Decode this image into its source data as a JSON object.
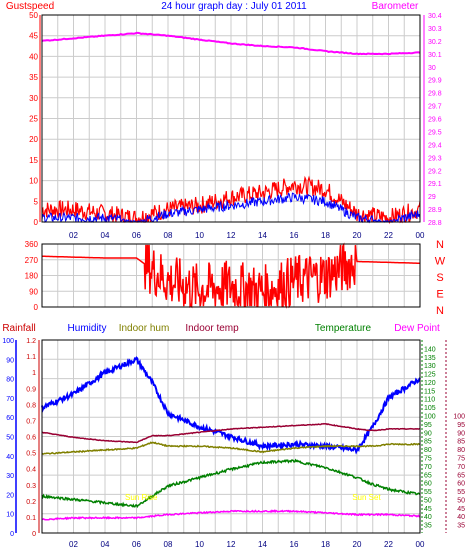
{
  "title": "24 hour graph day : July 01 2011",
  "colors": {
    "gust": "#ff0000",
    "wind": "#0000ff",
    "baro": "#ff00ff",
    "dir": "#ff0000",
    "rain": "#cc0000",
    "humidity": "#0000ff",
    "indoor_hum": "#808000",
    "indoor_temp": "#990033",
    "temperature": "#008000",
    "dewpoint": "#ff00ff",
    "grid": "#cccccc",
    "frame": "#000000",
    "time_axis": "#000080",
    "sun": "#ffff00"
  },
  "time_ticks": [
    "02",
    "04",
    "06",
    "08",
    "10",
    "12",
    "14",
    "16",
    "18",
    "20",
    "22",
    "00"
  ],
  "chart_data": [
    {
      "type": "line",
      "title": "24 hour graph day : July 01 2011",
      "legend": [
        {
          "name": "Gustspeed",
          "color": "#ff0000"
        },
        {
          "name": "Barometer",
          "color": "#ff00ff"
        }
      ],
      "ylim_left": [
        0,
        50
      ],
      "ylim_right": [
        28.8,
        30.4
      ],
      "yticks_left": [
        "0",
        "5",
        "10",
        "15",
        "20",
        "25",
        "30",
        "35",
        "40",
        "45",
        "50"
      ],
      "yticks_right": [
        "28.8",
        "28.9",
        "29",
        "29.1",
        "29.2",
        "29.3",
        "29.4",
        "29.5",
        "29.6",
        "29.7",
        "29.8",
        "29.9",
        "30",
        "30.1",
        "30.2",
        "30.3",
        "30.4"
      ],
      "x_hours": [
        0,
        2,
        4,
        6,
        8,
        10,
        12,
        14,
        16,
        18,
        20,
        22,
        24
      ],
      "series": [
        {
          "name": "Gustspeed",
          "values": [
            3,
            3,
            2,
            1,
            3,
            4,
            6,
            7,
            9,
            8,
            2,
            1,
            3
          ]
        },
        {
          "values": [
            1,
            1,
            1,
            0,
            2,
            3,
            4,
            5,
            6,
            5,
            1,
            0,
            2
          ]
        },
        {
          "name": "Barometer",
          "values": [
            30.2,
            30.22,
            30.24,
            30.26,
            30.24,
            30.21,
            30.18,
            30.16,
            30.15,
            30.12,
            30.1,
            30.1,
            30.11
          ]
        }
      ],
      "grid": true
    },
    {
      "type": "scatter",
      "ylim": [
        0,
        360
      ],
      "yticks": [
        "0",
        "90",
        "180",
        "270",
        "360"
      ],
      "right_labels": [
        "N",
        "W",
        "S",
        "E",
        "N"
      ],
      "x_hours": [
        0,
        2,
        4,
        6,
        8,
        10,
        12,
        14,
        16,
        18,
        20,
        22,
        24
      ],
      "values": [
        290,
        285,
        280,
        280,
        150,
        100,
        120,
        90,
        150,
        180,
        260,
        255,
        250
      ],
      "grid": true
    },
    {
      "type": "line",
      "legend": [
        {
          "name": "Rainfall",
          "color": "#cc0000"
        },
        {
          "name": "Humidity",
          "color": "#0000ff"
        },
        {
          "name": "Indoor hum",
          "color": "#808000"
        },
        {
          "name": "Indoor temp",
          "color": "#990033"
        },
        {
          "name": "Temperature",
          "color": "#008000"
        },
        {
          "name": "Dew Point",
          "color": "#ff00ff"
        }
      ],
      "axis_rain_ticks": [
        "0",
        "0.1",
        "0.2",
        "0.3",
        "0.4",
        "0.5",
        "0.6",
        "0.7",
        "0.8",
        "0.9",
        "1",
        "1.1",
        "1.2"
      ],
      "axis_humidity_ticks": [
        "0",
        "10",
        "20",
        "30",
        "40",
        "50",
        "60",
        "70",
        "80",
        "90",
        "100"
      ],
      "axis_temp_ticks": [
        "35",
        "40",
        "45",
        "50",
        "55",
        "60",
        "65",
        "70",
        "75",
        "80",
        "85",
        "90",
        "95",
        "100",
        "105",
        "110",
        "115",
        "120",
        "125",
        "130",
        "135",
        "140"
      ],
      "axis_dew_ticks": [
        "35",
        "40",
        "45",
        "50",
        "55",
        "60",
        "65",
        "70",
        "75",
        "80",
        "85",
        "90",
        "95",
        "100"
      ],
      "ylim_humidity": [
        0,
        100
      ],
      "ylim_temp": [
        30,
        145
      ],
      "x_hours": [
        0,
        2,
        4,
        6,
        7,
        8,
        10,
        12,
        14,
        16,
        18,
        20,
        21,
        22,
        24
      ],
      "series": [
        {
          "name": "Humidity",
          "values": [
            65,
            72,
            83,
            90,
            78,
            62,
            55,
            50,
            45,
            46,
            45,
            43,
            55,
            70,
            80
          ]
        },
        {
          "name": "Indoor hum",
          "values": [
            41,
            42,
            43,
            44,
            47,
            45,
            45,
            44,
            42,
            44,
            45,
            45,
            45,
            46,
            46
          ]
        },
        {
          "name": "Indoor temp",
          "values": [
            90,
            87,
            85,
            84,
            88,
            88,
            90,
            92,
            93,
            94,
            95,
            92,
            91,
            92,
            92
          ]
        },
        {
          "name": "Temperature",
          "values": [
            52,
            50,
            48,
            46,
            52,
            58,
            63,
            68,
            72,
            73,
            69,
            63,
            59,
            56,
            53
          ]
        },
        {
          "name": "Dew Point",
          "values": [
            38,
            39,
            39,
            39,
            40,
            41,
            42,
            43,
            43,
            43,
            42,
            41,
            41,
            41,
            40
          ]
        }
      ],
      "annotations": [
        "Sun Rise",
        "Sun Set"
      ],
      "grid": true
    }
  ]
}
